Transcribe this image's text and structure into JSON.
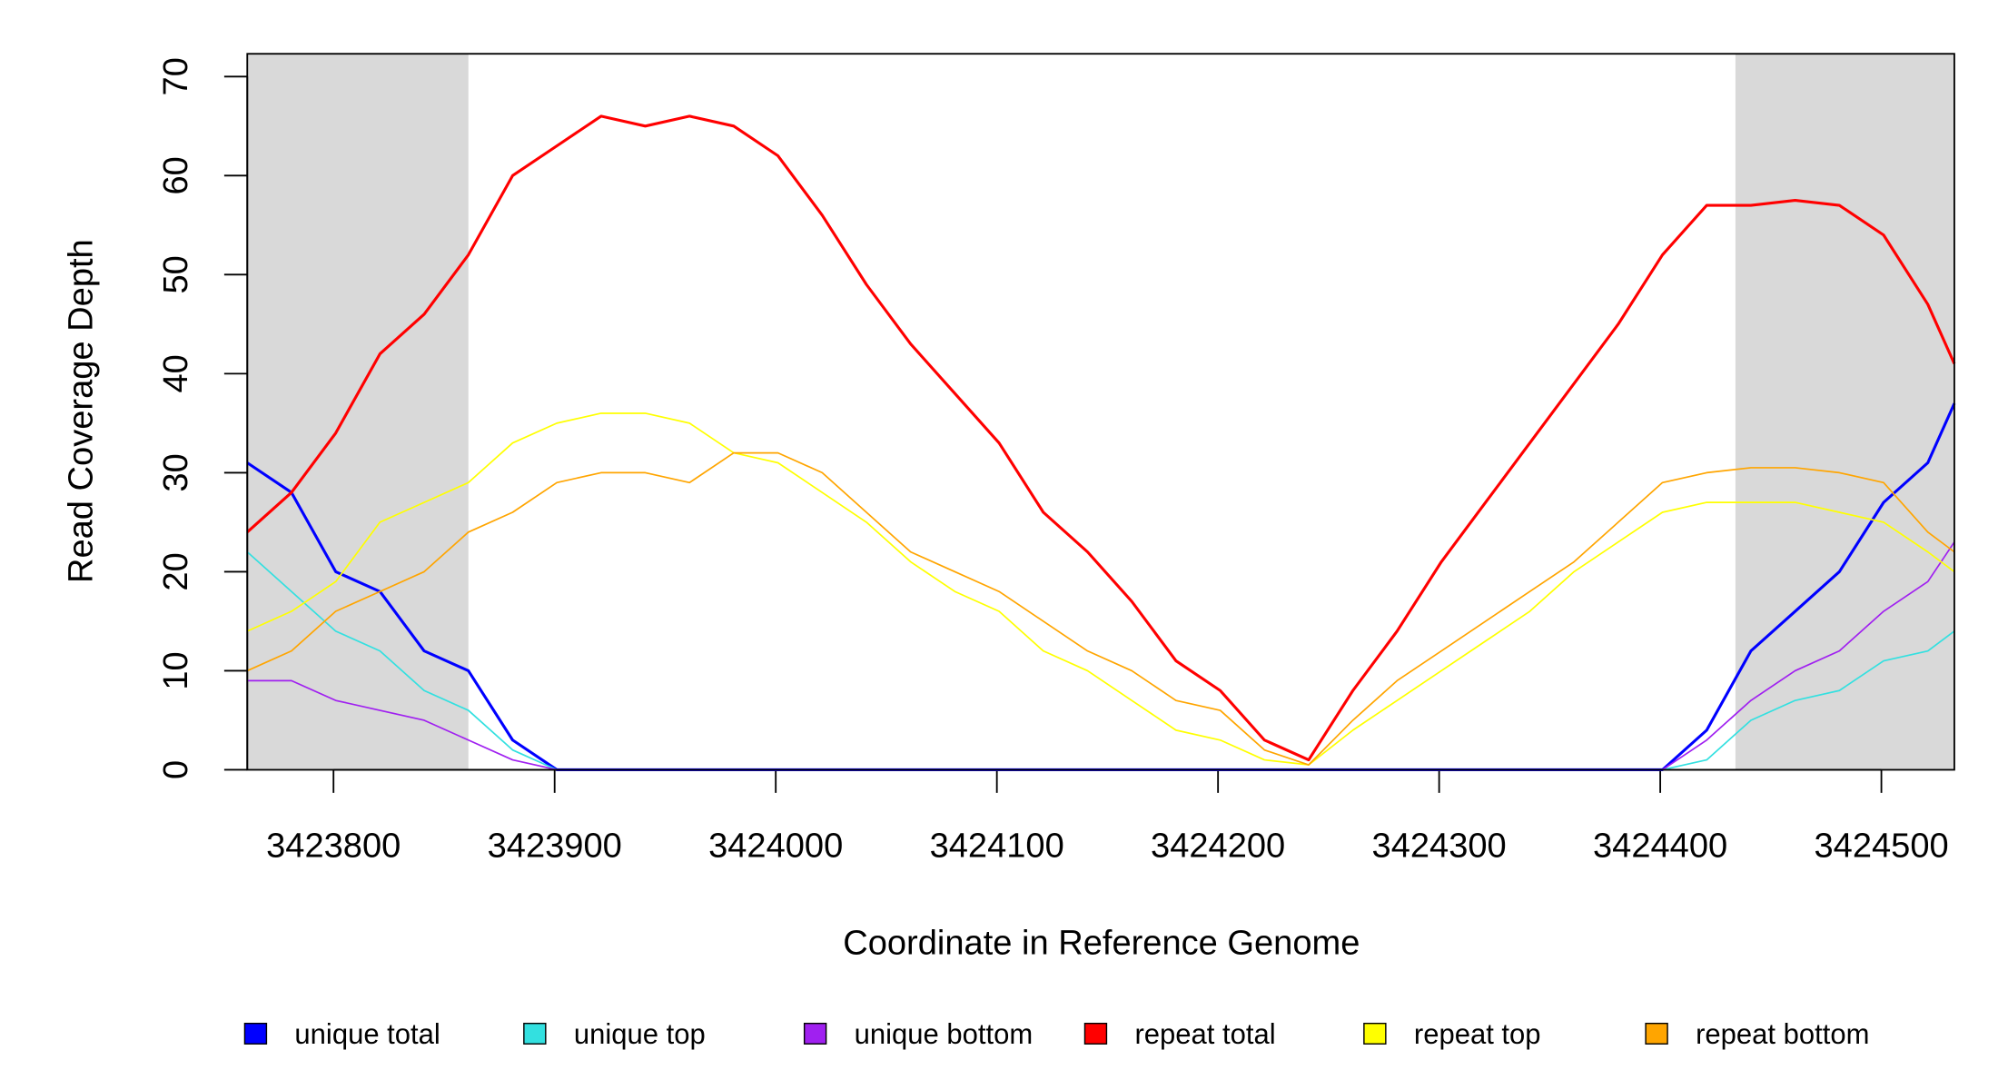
{
  "chart_data": {
    "type": "line",
    "xlabel": "Coordinate in Reference Genome",
    "ylabel": "Read Coverage Depth",
    "x": [
      3423761,
      3423781,
      3423801,
      3423821,
      3423841,
      3423861,
      3423881,
      3423901,
      3423921,
      3423941,
      3423961,
      3423981,
      3424001,
      3424021,
      3424041,
      3424061,
      3424081,
      3424101,
      3424121,
      3424141,
      3424161,
      3424181,
      3424201,
      3424221,
      3424241,
      3424261,
      3424281,
      3424301,
      3424321,
      3424341,
      3424361,
      3424381,
      3424401,
      3424421,
      3424441,
      3424461,
      3424481,
      3424501,
      3424521,
      3424533
    ],
    "series": [
      {
        "name": "unique total",
        "color": "#0000ff",
        "values": [
          31,
          28,
          20,
          18,
          12,
          10,
          3,
          0,
          0,
          0,
          0,
          0,
          0,
          0,
          0,
          0,
          0,
          0,
          0,
          0,
          0,
          0,
          0,
          0,
          0,
          0,
          0,
          0,
          0,
          0,
          0,
          0,
          0,
          4,
          12,
          16,
          20,
          27,
          31,
          37
        ]
      },
      {
        "name": "unique top",
        "color": "#33e0e0",
        "values": [
          22,
          18,
          14,
          12,
          8,
          6,
          2,
          0,
          0,
          0,
          0,
          0,
          0,
          0,
          0,
          0,
          0,
          0,
          0,
          0,
          0,
          0,
          0,
          0,
          0,
          0,
          0,
          0,
          0,
          0,
          0,
          0,
          0,
          1,
          5,
          7,
          8,
          11,
          12,
          14
        ]
      },
      {
        "name": "unique bottom",
        "color": "#a020f0",
        "values": [
          9,
          9,
          7,
          6,
          5,
          3,
          1,
          0,
          0,
          0,
          0,
          0,
          0,
          0,
          0,
          0,
          0,
          0,
          0,
          0,
          0,
          0,
          0,
          0,
          0,
          0,
          0,
          0,
          0,
          0,
          0,
          0,
          0,
          3,
          7,
          10,
          12,
          16,
          19,
          23
        ]
      },
      {
        "name": "repeat total",
        "color": "#ff0000",
        "values": [
          24,
          28,
          34,
          42,
          46,
          52,
          60,
          63,
          66,
          65,
          66,
          65,
          62,
          56,
          49,
          43,
          38,
          33,
          26,
          22,
          17,
          11,
          8,
          3,
          1,
          8,
          14,
          21,
          27,
          33,
          39,
          45,
          52,
          57,
          57,
          57.5,
          57,
          54,
          47,
          41
        ]
      },
      {
        "name": "repeat top",
        "color": "#ffff00",
        "values": [
          14,
          16,
          19,
          25,
          27,
          29,
          33,
          35,
          36,
          36,
          35,
          32,
          31,
          28,
          25,
          21,
          18,
          16,
          12,
          10,
          7,
          4,
          3,
          1,
          0.5,
          4,
          7,
          10,
          13,
          16,
          20,
          23,
          26,
          27,
          27,
          27,
          26,
          25,
          22,
          20
        ]
      },
      {
        "name": "repeat bottom",
        "color": "#ffa500",
        "values": [
          10,
          12,
          16,
          18,
          20,
          24,
          26,
          29,
          30,
          30,
          29,
          32,
          32,
          30,
          26,
          22,
          20,
          18,
          15,
          12,
          10,
          7,
          6,
          2,
          0.5,
          5,
          9,
          12,
          15,
          18,
          21,
          25,
          29,
          30,
          30.5,
          30.5,
          30,
          29,
          24,
          22
        ]
      }
    ],
    "shaded_regions": [
      [
        3423761,
        3423861
      ],
      [
        3424434,
        3424533
      ]
    ],
    "xlim": [
      3423761,
      3424533
    ],
    "ylim": [
      0,
      72.3
    ],
    "xticks": [
      3423800,
      3423900,
      3424000,
      3424100,
      3424200,
      3424300,
      3424400,
      3424500
    ],
    "yticks": [
      0,
      10,
      20,
      30,
      40,
      50,
      60,
      70
    ],
    "legend": "bottom"
  }
}
